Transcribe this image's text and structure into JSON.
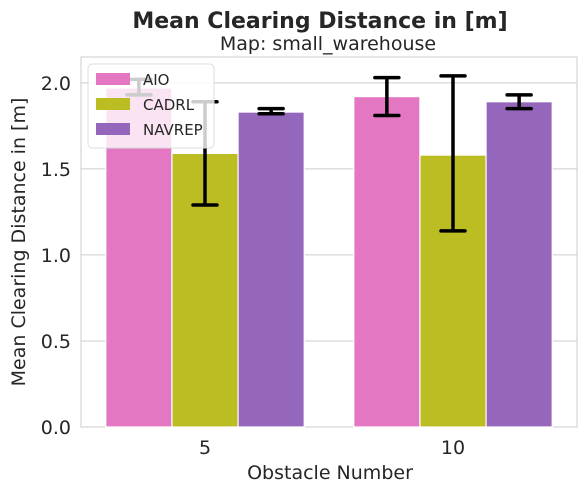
{
  "chart_data": {
    "type": "bar",
    "title": "Mean Clearing Distance in [m]",
    "subtitle": "Map: small_warehouse",
    "xlabel": "Obstacle Number",
    "ylabel": "Mean Clearing Distance in [m]",
    "categories": [
      "5",
      "10"
    ],
    "ylim": [
      0,
      2.15
    ],
    "yticks": [
      0.0,
      0.5,
      1.0,
      1.5,
      2.0
    ],
    "ytick_labels": [
      "0.0",
      "0.5",
      "1.0",
      "1.5",
      "2.0"
    ],
    "grid": true,
    "legend_position": "top-left",
    "series": [
      {
        "name": "AIO",
        "color": "#e377c2",
        "values": [
          1.97,
          1.92
        ],
        "err_low": [
          1.93,
          1.81
        ],
        "err_high": [
          2.02,
          2.03
        ]
      },
      {
        "name": "CADRL",
        "color": "#bcbd22",
        "values": [
          1.59,
          1.58
        ],
        "err_low": [
          1.29,
          1.14
        ],
        "err_high": [
          1.89,
          2.04
        ]
      },
      {
        "name": "NAVREP",
        "color": "#9467bd",
        "values": [
          1.83,
          1.89
        ],
        "err_low": [
          1.82,
          1.85
        ],
        "err_high": [
          1.85,
          1.93
        ]
      }
    ]
  }
}
